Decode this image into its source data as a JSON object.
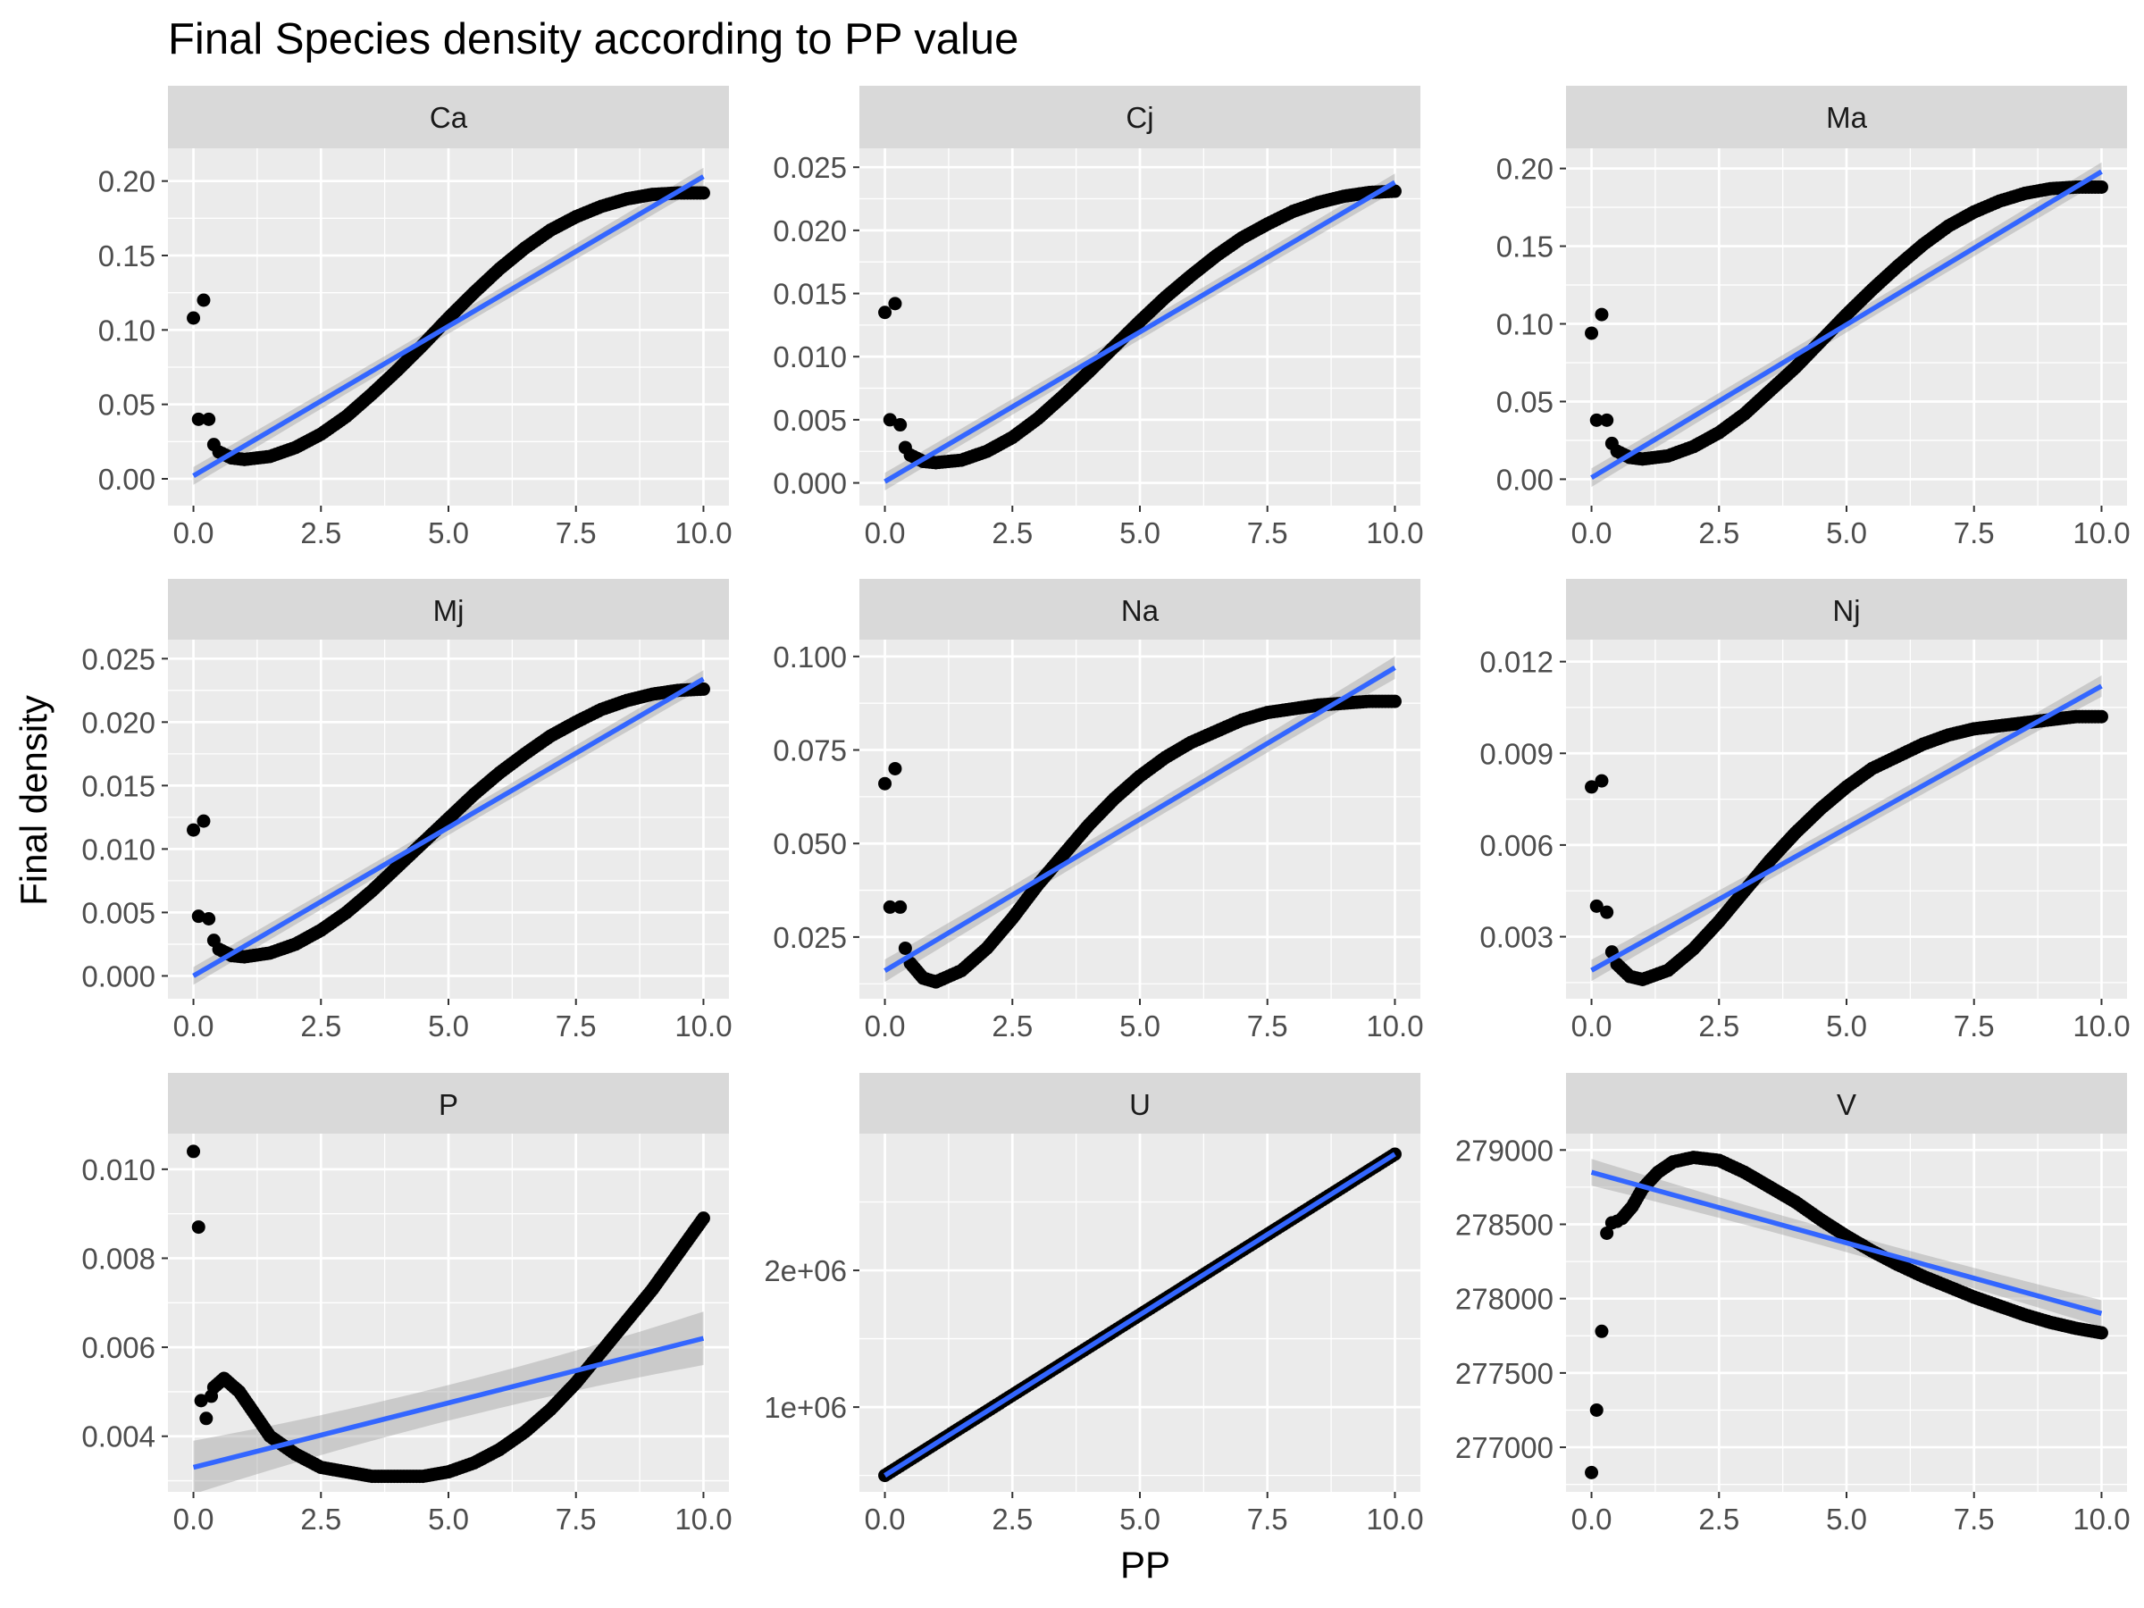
{
  "chart_data": {
    "type": "scatter",
    "title": "Final Species density according to PP value",
    "xlabel": "PP",
    "ylabel": "Final density",
    "colors": {
      "panel_background": "#ebebeb",
      "strip_background": "#d9d9d9",
      "gridline": "#ffffff",
      "points": "#000000",
      "fit_line": "#3366ff",
      "confidence_band": "#999999"
    },
    "grid": true,
    "legend": "none",
    "x_ticks": [
      "0.0",
      "2.5",
      "5.0",
      "7.5",
      "10.0"
    ],
    "x_tick_values": [
      0,
      2.5,
      5,
      7.5,
      10
    ],
    "panels": [
      {
        "name": "Ca",
        "xlim": [
          -0.5,
          10.5
        ],
        "ylim": [
          -0.018,
          0.222
        ],
        "y_ticks": [
          "0.00",
          "0.05",
          "0.10",
          "0.15",
          "0.20"
        ],
        "y_tick_values": [
          0,
          0.05,
          0.1,
          0.15,
          0.2
        ],
        "points": [
          [
            0,
            0.108
          ],
          [
            0.1,
            0.04
          ],
          [
            0.2,
            0.12
          ],
          [
            0.3,
            0.04
          ],
          [
            0.4,
            0.023
          ]
        ],
        "curve": [
          [
            0.5,
            0.018
          ],
          [
            0.75,
            0.014
          ],
          [
            1,
            0.013
          ],
          [
            1.5,
            0.015
          ],
          [
            2,
            0.021
          ],
          [
            2.5,
            0.03
          ],
          [
            3,
            0.042
          ],
          [
            3.5,
            0.057
          ],
          [
            4,
            0.073
          ],
          [
            4.5,
            0.09
          ],
          [
            5,
            0.108
          ],
          [
            5.5,
            0.125
          ],
          [
            6,
            0.141
          ],
          [
            6.5,
            0.155
          ],
          [
            7,
            0.167
          ],
          [
            7.5,
            0.176
          ],
          [
            8,
            0.183
          ],
          [
            8.5,
            0.188
          ],
          [
            9,
            0.191
          ],
          [
            9.5,
            0.192
          ],
          [
            10,
            0.192
          ]
        ],
        "fit": [
          [
            0,
            0.002
          ],
          [
            10,
            0.203
          ]
        ],
        "band": [
          0.006,
          0.004,
          0.006
        ]
      },
      {
        "name": "Cj",
        "xlim": [
          -0.5,
          10.5
        ],
        "ylim": [
          -0.0018,
          0.0265
        ],
        "y_ticks": [
          "0.000",
          "0.005",
          "0.010",
          "0.015",
          "0.020",
          "0.025"
        ],
        "y_tick_values": [
          0,
          0.005,
          0.01,
          0.015,
          0.02,
          0.025
        ],
        "points": [
          [
            0,
            0.0135
          ],
          [
            0.1,
            0.005
          ],
          [
            0.2,
            0.0142
          ],
          [
            0.3,
            0.0046
          ],
          [
            0.4,
            0.0028
          ]
        ],
        "curve": [
          [
            0.5,
            0.0022
          ],
          [
            0.75,
            0.0017
          ],
          [
            1,
            0.0016
          ],
          [
            1.5,
            0.0018
          ],
          [
            2,
            0.0025
          ],
          [
            2.5,
            0.0036
          ],
          [
            3,
            0.0051
          ],
          [
            3.5,
            0.0069
          ],
          [
            4,
            0.0088
          ],
          [
            4.5,
            0.0108
          ],
          [
            5,
            0.0128
          ],
          [
            5.5,
            0.0147
          ],
          [
            6,
            0.0164
          ],
          [
            6.5,
            0.018
          ],
          [
            7,
            0.0194
          ],
          [
            7.5,
            0.0205
          ],
          [
            8,
            0.0215
          ],
          [
            8.5,
            0.0222
          ],
          [
            9,
            0.0227
          ],
          [
            9.5,
            0.023
          ],
          [
            10,
            0.0231
          ]
        ],
        "fit": [
          [
            0,
            0.0001
          ],
          [
            10,
            0.0238
          ]
        ],
        "band": [
          0.0007,
          0.0005,
          0.0007
        ]
      },
      {
        "name": "Ma",
        "xlim": [
          -0.5,
          10.5
        ],
        "ylim": [
          -0.017,
          0.213
        ],
        "y_ticks": [
          "0.00",
          "0.05",
          "0.10",
          "0.15",
          "0.20"
        ],
        "y_tick_values": [
          0,
          0.05,
          0.1,
          0.15,
          0.2
        ],
        "points": [
          [
            0,
            0.094
          ],
          [
            0.1,
            0.038
          ],
          [
            0.2,
            0.106
          ],
          [
            0.3,
            0.038
          ],
          [
            0.4,
            0.023
          ]
        ],
        "curve": [
          [
            0.5,
            0.018
          ],
          [
            0.75,
            0.014
          ],
          [
            1,
            0.013
          ],
          [
            1.5,
            0.015
          ],
          [
            2,
            0.021
          ],
          [
            2.5,
            0.03
          ],
          [
            3,
            0.042
          ],
          [
            3.5,
            0.057
          ],
          [
            4,
            0.072
          ],
          [
            4.5,
            0.089
          ],
          [
            5,
            0.106
          ],
          [
            5.5,
            0.122
          ],
          [
            6,
            0.137
          ],
          [
            6.5,
            0.151
          ],
          [
            7,
            0.163
          ],
          [
            7.5,
            0.172
          ],
          [
            8,
            0.179
          ],
          [
            8.5,
            0.184
          ],
          [
            9,
            0.187
          ],
          [
            9.5,
            0.188
          ],
          [
            10,
            0.188
          ]
        ],
        "fit": [
          [
            0,
            0.001
          ],
          [
            10,
            0.198
          ]
        ],
        "band": [
          0.006,
          0.004,
          0.006
        ]
      },
      {
        "name": "Mj",
        "xlim": [
          -0.5,
          10.5
        ],
        "ylim": [
          -0.0018,
          0.0265
        ],
        "y_ticks": [
          "0.000",
          "0.005",
          "0.010",
          "0.015",
          "0.020",
          "0.025"
        ],
        "y_tick_values": [
          0,
          0.005,
          0.01,
          0.015,
          0.02,
          0.025
        ],
        "points": [
          [
            0,
            0.0115
          ],
          [
            0.1,
            0.0047
          ],
          [
            0.2,
            0.0122
          ],
          [
            0.3,
            0.0045
          ],
          [
            0.4,
            0.0028
          ]
        ],
        "curve": [
          [
            0.5,
            0.0021
          ],
          [
            0.75,
            0.0016
          ],
          [
            1,
            0.0015
          ],
          [
            1.5,
            0.0018
          ],
          [
            2,
            0.0025
          ],
          [
            2.5,
            0.0036
          ],
          [
            3,
            0.005
          ],
          [
            3.5,
            0.0067
          ],
          [
            4,
            0.0086
          ],
          [
            4.5,
            0.0105
          ],
          [
            5,
            0.0124
          ],
          [
            5.5,
            0.0143
          ],
          [
            6,
            0.016
          ],
          [
            6.5,
            0.0175
          ],
          [
            7,
            0.0189
          ],
          [
            7.5,
            0.02
          ],
          [
            8,
            0.021
          ],
          [
            8.5,
            0.0217
          ],
          [
            9,
            0.0222
          ],
          [
            9.5,
            0.0225
          ],
          [
            10,
            0.0226
          ]
        ],
        "fit": [
          [
            0,
            0.0
          ],
          [
            10,
            0.0234
          ]
        ],
        "band": [
          0.0007,
          0.0005,
          0.0007
        ]
      },
      {
        "name": "Na",
        "xlim": [
          -0.5,
          10.5
        ],
        "ylim": [
          0.0085,
          0.1045
        ],
        "y_ticks": [
          "0.025",
          "0.050",
          "0.075",
          "0.100"
        ],
        "y_tick_values": [
          0.025,
          0.05,
          0.075,
          0.1
        ],
        "points": [
          [
            0,
            0.066
          ],
          [
            0.1,
            0.033
          ],
          [
            0.2,
            0.07
          ],
          [
            0.3,
            0.033
          ],
          [
            0.4,
            0.022
          ]
        ],
        "curve": [
          [
            0.5,
            0.018
          ],
          [
            0.75,
            0.014
          ],
          [
            1,
            0.013
          ],
          [
            1.5,
            0.016
          ],
          [
            2,
            0.022
          ],
          [
            2.5,
            0.03
          ],
          [
            3,
            0.039
          ],
          [
            3.5,
            0.047
          ],
          [
            4,
            0.055
          ],
          [
            4.5,
            0.062
          ],
          [
            5,
            0.068
          ],
          [
            5.5,
            0.073
          ],
          [
            6,
            0.077
          ],
          [
            6.5,
            0.08
          ],
          [
            7,
            0.083
          ],
          [
            7.5,
            0.085
          ],
          [
            8,
            0.086
          ],
          [
            8.5,
            0.087
          ],
          [
            9,
            0.0875
          ],
          [
            9.5,
            0.088
          ],
          [
            10,
            0.088
          ]
        ],
        "fit": [
          [
            0,
            0.016
          ],
          [
            10,
            0.097
          ]
        ],
        "band": [
          0.003,
          0.0015,
          0.003
        ]
      },
      {
        "name": "Nj",
        "xlim": [
          -0.5,
          10.5
        ],
        "ylim": [
          0.00097,
          0.01272
        ],
        "y_ticks": [
          "0.003",
          "0.006",
          "0.009",
          "0.012"
        ],
        "y_tick_values": [
          0.003,
          0.006,
          0.009,
          0.012
        ],
        "points": [
          [
            0,
            0.0079
          ],
          [
            0.1,
            0.004
          ],
          [
            0.2,
            0.0081
          ],
          [
            0.3,
            0.0038
          ],
          [
            0.4,
            0.0025
          ]
        ],
        "curve": [
          [
            0.5,
            0.0021
          ],
          [
            0.75,
            0.0017
          ],
          [
            1,
            0.0016
          ],
          [
            1.5,
            0.0019
          ],
          [
            2,
            0.0026
          ],
          [
            2.5,
            0.0035
          ],
          [
            3,
            0.0045
          ],
          [
            3.5,
            0.0055
          ],
          [
            4,
            0.0064
          ],
          [
            4.5,
            0.0072
          ],
          [
            5,
            0.0079
          ],
          [
            5.5,
            0.0085
          ],
          [
            6,
            0.0089
          ],
          [
            6.5,
            0.0093
          ],
          [
            7,
            0.0096
          ],
          [
            7.5,
            0.0098
          ],
          [
            8,
            0.0099
          ],
          [
            8.5,
            0.01
          ],
          [
            9,
            0.0101
          ],
          [
            9.5,
            0.0102
          ],
          [
            10,
            0.0102
          ]
        ],
        "fit": [
          [
            0,
            0.0019
          ],
          [
            10,
            0.0112
          ]
        ],
        "band": [
          0.00035,
          0.00018,
          0.00035
        ]
      },
      {
        "name": "P",
        "xlim": [
          -0.5,
          10.5
        ],
        "ylim": [
          0.00275,
          0.0108
        ],
        "y_ticks": [
          "0.004",
          "0.006",
          "0.008",
          "0.010"
        ],
        "y_tick_values": [
          0.004,
          0.006,
          0.008,
          0.01
        ],
        "points": [
          [
            0,
            0.0104
          ],
          [
            0.1,
            0.0087
          ],
          [
            0.15,
            0.0048
          ],
          [
            0.25,
            0.0044
          ],
          [
            0.35,
            0.0049
          ]
        ],
        "curve": [
          [
            0.4,
            0.0051
          ],
          [
            0.5,
            0.0052
          ],
          [
            0.6,
            0.0053
          ],
          [
            0.7,
            0.0052
          ],
          [
            0.9,
            0.005
          ],
          [
            1.2,
            0.0045
          ],
          [
            1.5,
            0.004
          ],
          [
            2,
            0.0036
          ],
          [
            2.5,
            0.0033
          ],
          [
            3,
            0.0032
          ],
          [
            3.5,
            0.0031
          ],
          [
            4,
            0.0031
          ],
          [
            4.5,
            0.0031
          ],
          [
            5,
            0.0032
          ],
          [
            5.5,
            0.0034
          ],
          [
            6,
            0.0037
          ],
          [
            6.5,
            0.0041
          ],
          [
            7,
            0.0046
          ],
          [
            7.5,
            0.0052
          ],
          [
            8,
            0.0059
          ],
          [
            8.5,
            0.0066
          ],
          [
            9,
            0.0073
          ],
          [
            9.5,
            0.0081
          ],
          [
            10,
            0.0089
          ]
        ],
        "fit": [
          [
            0,
            0.0033
          ],
          [
            10,
            0.0062
          ]
        ],
        "band": [
          0.0006,
          0.0002,
          0.0006
        ]
      },
      {
        "name": "U",
        "xlim": [
          -0.5,
          10.5
        ],
        "ylim": [
          380000,
          3000000
        ],
        "y_ticks": [
          "1e+06",
          "2e+06"
        ],
        "y_tick_values": [
          1000000,
          2000000
        ],
        "points": [],
        "curve": [
          [
            0,
            500000
          ],
          [
            10,
            2850000
          ]
        ],
        "fit": [
          [
            0,
            500000
          ],
          [
            10,
            2850000
          ]
        ],
        "band": [
          0,
          0,
          0
        ]
      },
      {
        "name": "V",
        "xlim": [
          -0.5,
          10.5
        ],
        "ylim": [
          276700,
          279110
        ],
        "y_ticks": [
          "277000",
          "277500",
          "278000",
          "278500",
          "279000"
        ],
        "y_tick_values": [
          277000,
          277500,
          278000,
          278500,
          279000
        ],
        "points": [
          [
            0,
            276830
          ],
          [
            0.1,
            277250
          ],
          [
            0.2,
            277780
          ],
          [
            0.3,
            278440
          ],
          [
            0.4,
            278510
          ],
          [
            0.5,
            278520
          ]
        ],
        "curve": [
          [
            0.6,
            278540
          ],
          [
            0.8,
            278620
          ],
          [
            1,
            278740
          ],
          [
            1.3,
            278850
          ],
          [
            1.6,
            278920
          ],
          [
            2,
            278950
          ],
          [
            2.5,
            278930
          ],
          [
            3,
            278850
          ],
          [
            3.5,
            278750
          ],
          [
            4,
            278650
          ],
          [
            4.5,
            278530
          ],
          [
            5,
            278420
          ],
          [
            5.5,
            278320
          ],
          [
            6,
            278230
          ],
          [
            6.5,
            278150
          ],
          [
            7,
            278080
          ],
          [
            7.5,
            278010
          ],
          [
            8,
            277950
          ],
          [
            8.5,
            277890
          ],
          [
            9,
            277840
          ],
          [
            9.5,
            277800
          ],
          [
            10,
            277770
          ]
        ],
        "fit": [
          [
            0,
            278850
          ],
          [
            10,
            277900
          ]
        ],
        "band": [
          90,
          35,
          90
        ]
      }
    ]
  }
}
